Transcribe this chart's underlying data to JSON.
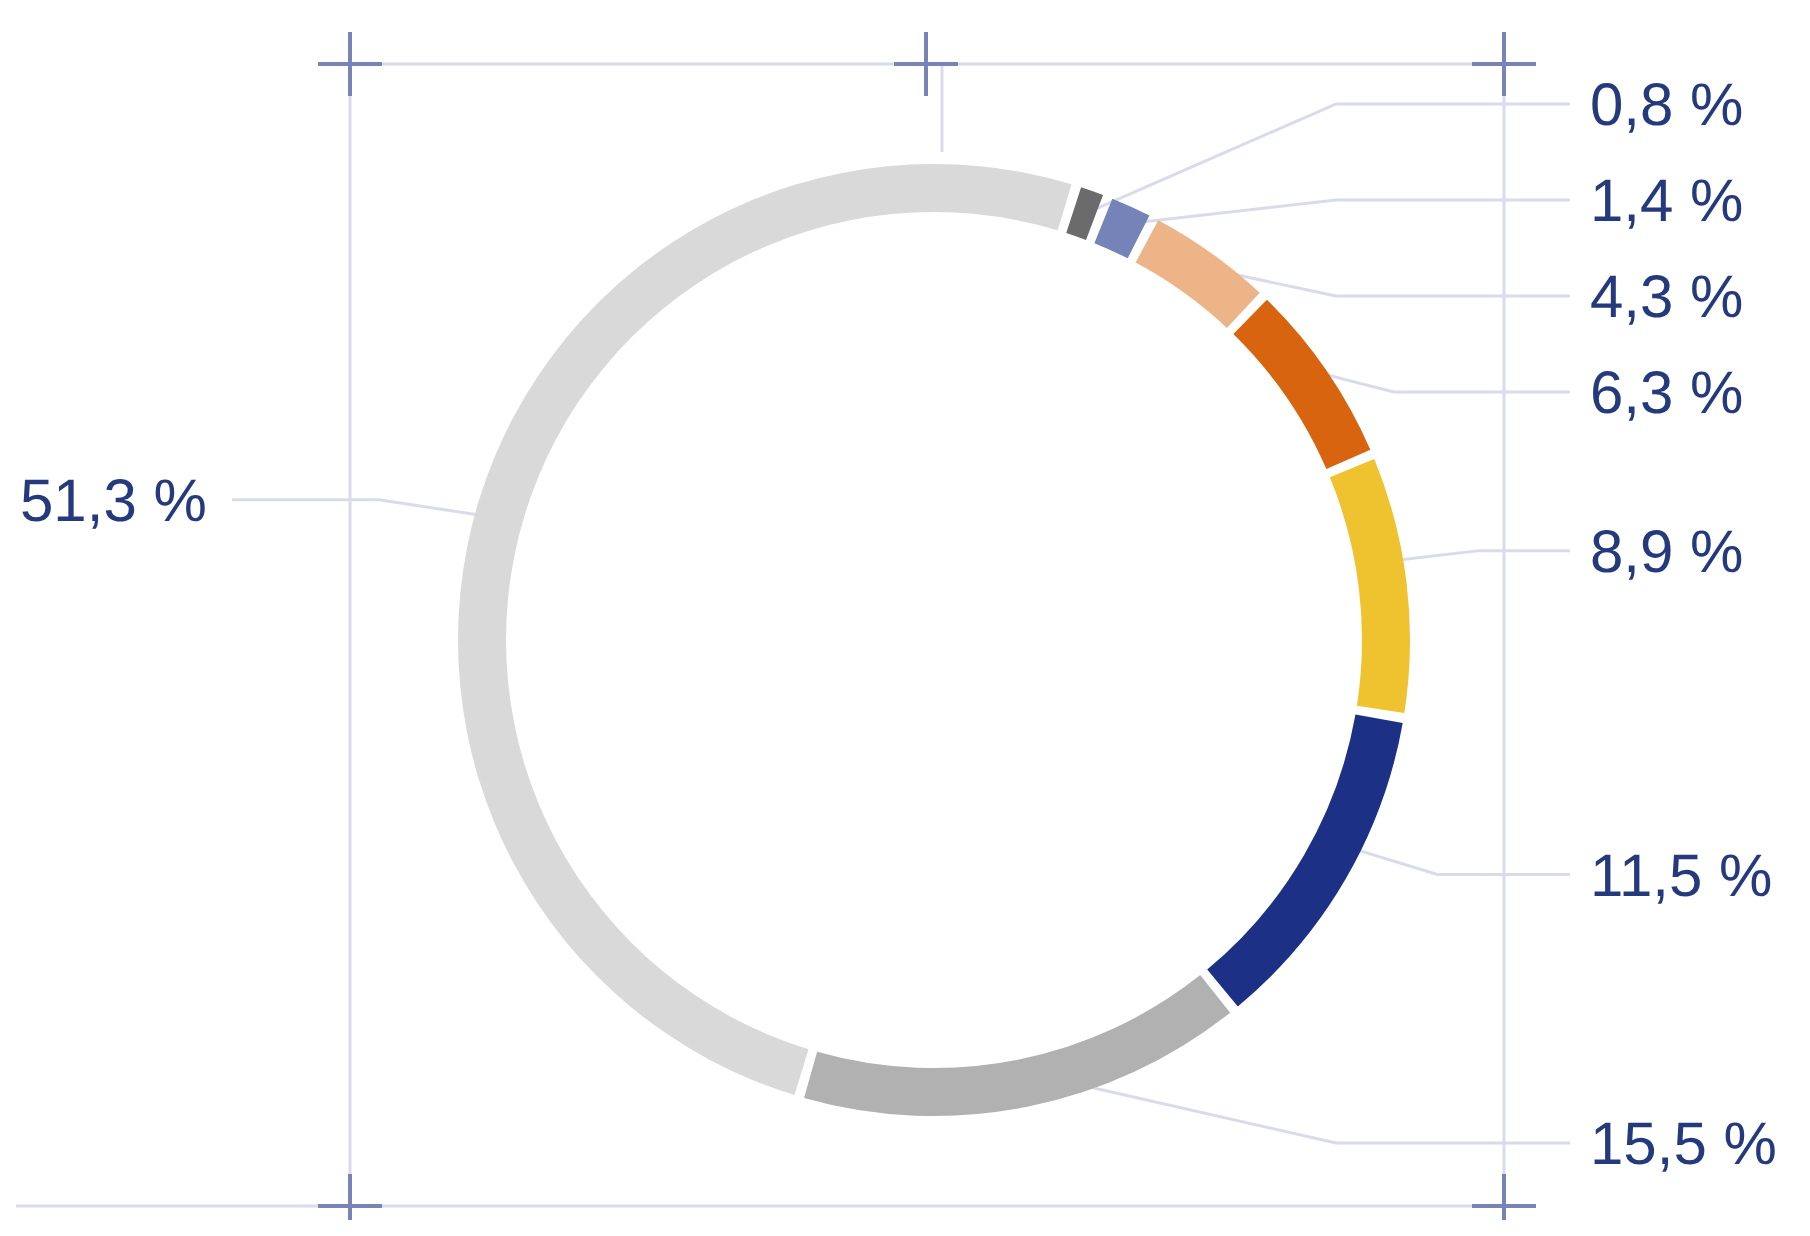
{
  "chart_data": {
    "type": "donut",
    "categories": [
      null,
      null,
      null,
      null,
      null,
      null,
      null,
      null
    ],
    "values": [
      0.8,
      1.4,
      4.3,
      6.3,
      8.9,
      11.5,
      15.5,
      51.3
    ],
    "colors": [
      "#6b6b6b",
      "#7683b8",
      "#edb487",
      "#d9640f",
      "#efc22f",
      "#1c3185",
      "#b1b1b1",
      "#d9d9d9"
    ],
    "value_labels": [
      "0,8 %",
      "1,4 %",
      "4,3 %",
      "6,3 %",
      "8,9 %",
      "11,5 %",
      "15,5 %",
      "51,3 %"
    ],
    "legend": false
  }
}
